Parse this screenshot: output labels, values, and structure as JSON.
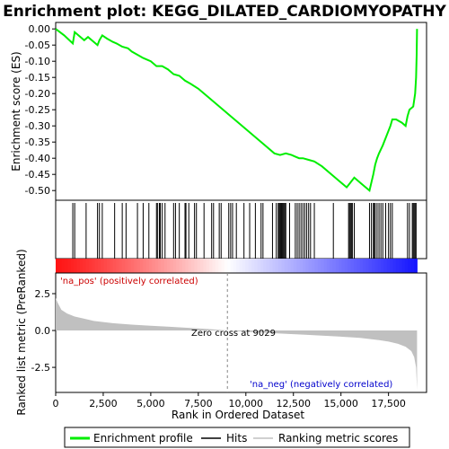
{
  "chart_data": {
    "type": "line",
    "title": "Enrichment plot: KEGG_DILATED_CARDIOMYOPATHY",
    "xlabel": "Rank in Ordered Dataset",
    "top_ylabel": "Enrichment score (ES)",
    "bottom_ylabel": "Ranked list metric (PreRanked)",
    "xlim": [
      0,
      19500
    ],
    "x_ticks": [
      0,
      2500,
      5000,
      7500,
      10000,
      12500,
      15000,
      17500
    ],
    "x_tick_labels": [
      "0",
      "2,500",
      "5,000",
      "7,500",
      "10,000",
      "12,500",
      "15,000",
      "17,500"
    ],
    "es_ylim": [
      -0.53,
      0.02
    ],
    "es_ticks": [
      0.0,
      -0.05,
      -0.1,
      -0.15,
      -0.2,
      -0.25,
      -0.3,
      -0.35,
      -0.4,
      -0.45,
      -0.5
    ],
    "es_tick_labels": [
      "0.00",
      "-0.05",
      "-0.10",
      "-0.15",
      "-0.20",
      "-0.25",
      "-0.30",
      "-0.35",
      "-0.40",
      "-0.45",
      "-0.50"
    ],
    "metric_ylim": [
      -4.2,
      3.9
    ],
    "metric_ticks": [
      2.5,
      0.0,
      -2.5
    ],
    "metric_tick_labels": [
      "2.5",
      "0.0",
      "-2.5"
    ],
    "series": [
      {
        "name": "Enrichment profile",
        "color": "#00ee00",
        "x": [
          0,
          450,
          900,
          1000,
          1200,
          1500,
          1700,
          2000,
          2200,
          2300,
          2450,
          2700,
          3000,
          3200,
          3500,
          3800,
          4000,
          4300,
          4600,
          5000,
          5300,
          5600,
          5900,
          6200,
          6500,
          6800,
          7100,
          7500,
          8000,
          8500,
          9000,
          9500,
          10000,
          10500,
          11000,
          11500,
          11800,
          12100,
          12400,
          12600,
          12800,
          13000,
          13300,
          13600,
          14000,
          14500,
          15000,
          15300,
          15500,
          15700,
          16000,
          16300,
          16500,
          16700,
          16800,
          16900,
          17000,
          17200,
          17400,
          17600,
          17700,
          17900,
          18200,
          18400,
          18500,
          18600,
          18800,
          18900,
          18950,
          18980,
          19000
        ],
        "y": [
          0.0,
          -0.02,
          -0.045,
          -0.01,
          -0.02,
          -0.035,
          -0.025,
          -0.04,
          -0.05,
          -0.035,
          -0.02,
          -0.03,
          -0.04,
          -0.045,
          -0.055,
          -0.06,
          -0.07,
          -0.08,
          -0.09,
          -0.1,
          -0.115,
          -0.115,
          -0.125,
          -0.14,
          -0.145,
          -0.16,
          -0.17,
          -0.185,
          -0.21,
          -0.235,
          -0.26,
          -0.285,
          -0.31,
          -0.335,
          -0.36,
          -0.385,
          -0.39,
          -0.385,
          -0.39,
          -0.395,
          -0.4,
          -0.4,
          -0.405,
          -0.41,
          -0.425,
          -0.45,
          -0.475,
          -0.49,
          -0.475,
          -0.46,
          -0.475,
          -0.49,
          -0.5,
          -0.45,
          -0.42,
          -0.4,
          -0.385,
          -0.36,
          -0.33,
          -0.3,
          -0.28,
          -0.28,
          -0.29,
          -0.3,
          -0.27,
          -0.25,
          -0.24,
          -0.2,
          -0.15,
          -0.08,
          0.0
        ]
      },
      {
        "name": "Hits",
        "color": "#000000",
        "hit_ranks": [
          900,
          1000,
          1600,
          2200,
          2300,
          2450,
          3100,
          3500,
          3700,
          4300,
          4600,
          4900,
          5300,
          5350,
          5450,
          5500,
          5600,
          5750,
          6200,
          6300,
          6500,
          6800,
          6850,
          7000,
          7300,
          7400,
          7800,
          8200,
          8300,
          8600,
          8700,
          9100,
          9200,
          9300,
          9500,
          9900,
          10200,
          10500,
          10800,
          10900,
          11400,
          11600,
          11700,
          11750,
          11800,
          11850,
          11900,
          11950,
          12000,
          12050,
          12100,
          12300,
          12600,
          12700,
          12800,
          12900,
          13000,
          13100,
          13200,
          13300,
          13400,
          13600,
          14600,
          15400,
          15450,
          15500,
          15550,
          15600,
          15700,
          16500,
          16600,
          16700,
          16750,
          16800,
          16900,
          17000,
          17100,
          17200,
          17350,
          17500,
          17600,
          17700,
          18500,
          18600,
          18750,
          18800,
          18850,
          18900,
          18950
        ]
      },
      {
        "name": "Ranking metric scores",
        "color": "#c0c0c0",
        "x": [
          0,
          100,
          300,
          600,
          1000,
          1500,
          2000,
          3000,
          4000,
          5000,
          6000,
          7000,
          8000,
          9029,
          10000,
          11000,
          12000,
          13000,
          14000,
          15000,
          16000,
          17000,
          17500,
          18000,
          18400,
          18700,
          18850,
          18950,
          19000
        ],
        "y": [
          2.2,
          1.9,
          1.4,
          1.15,
          0.95,
          0.8,
          0.65,
          0.5,
          0.4,
          0.32,
          0.25,
          0.18,
          0.1,
          0.0,
          -0.08,
          -0.15,
          -0.22,
          -0.28,
          -0.35,
          -0.42,
          -0.5,
          -0.65,
          -0.75,
          -0.9,
          -1.1,
          -1.4,
          -1.8,
          -2.5,
          -4.0
        ]
      }
    ],
    "annotations": {
      "pos_label": "'na_pos' (positively correlated)",
      "neg_label": "'na_neg' (negatively correlated)",
      "zero_cross": "Zero cross at 9029",
      "zero_cross_rank": 9029
    },
    "legend": {
      "placement": "bottom",
      "entries": [
        "Enrichment profile",
        "Hits",
        "Ranking metric scores"
      ]
    },
    "grid": false
  },
  "colors": {
    "profile": "#00ee00",
    "hits": "#000000",
    "metric": "#c0c0c0",
    "positive": "#dd0000",
    "negative": "#0000cc"
  }
}
